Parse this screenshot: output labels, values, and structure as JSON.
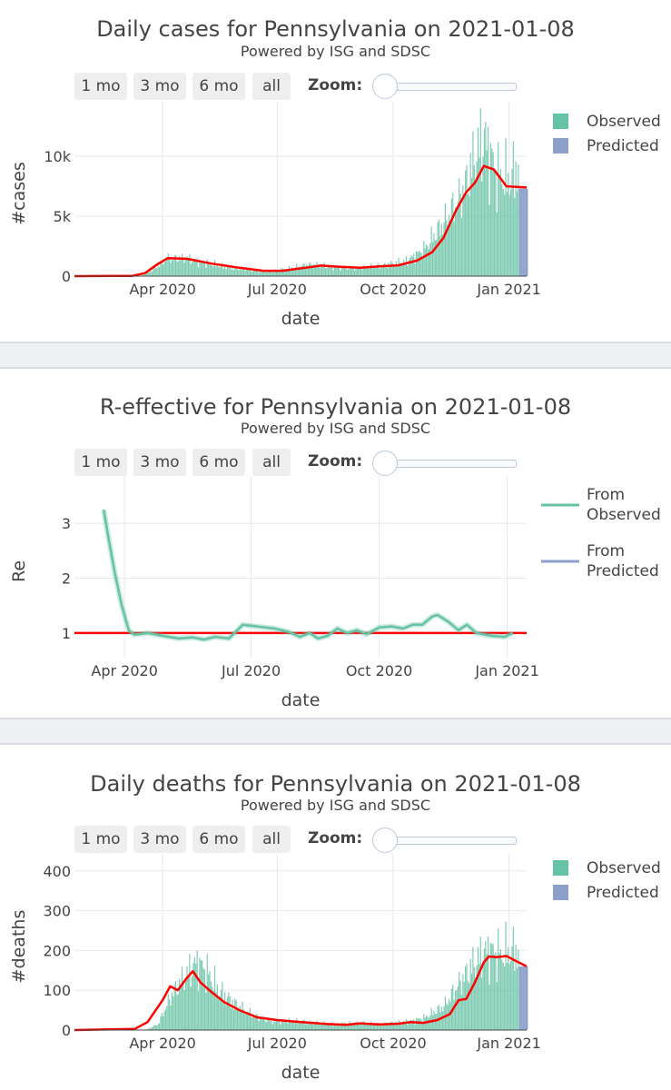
{
  "controls": {
    "buttons": [
      "1 mo",
      "3 mo",
      "6 mo",
      "all"
    ],
    "zoom_label": "Zoom:"
  },
  "colors": {
    "observed": "#66c2a5",
    "predicted": "#8da0cb",
    "trend": "#ff0000",
    "grid": "#e8e8e8"
  },
  "chart_data": [
    {
      "type": "bar",
      "title": "Daily cases for Pennsylvania on 2021-01-08",
      "subtitle": "Powered by ISG and SDSC",
      "xlabel": "date",
      "ylabel": "#cases",
      "x_range": [
        "2020-01-22",
        "2021-01-15"
      ],
      "ylim": [
        0,
        13800
      ],
      "x_ticks": [
        {
          "date": "2020-04-01",
          "label": "Apr 2020"
        },
        {
          "date": "2020-07-01",
          "label": "Jul 2020"
        },
        {
          "date": "2020-10-01",
          "label": "Oct 2020"
        },
        {
          "date": "2021-01-01",
          "label": "Jan 2021"
        }
      ],
      "y_ticks": [
        {
          "value": 0,
          "label": "0"
        },
        {
          "value": 5000,
          "label": "5k"
        },
        {
          "value": 10000,
          "label": "10k"
        }
      ],
      "legend": {
        "position": "top-right",
        "items": [
          "Observed",
          "Predicted"
        ]
      },
      "observed_start": "2020-03-06",
      "observed_end": "2021-01-08",
      "predicted_end": "2021-01-15",
      "series": [
        {
          "name": "Observed",
          "style": "bars",
          "profile": [
            [
              "2020-03-06",
              0
            ],
            [
              "2020-03-15",
              30
            ],
            [
              "2020-03-25",
              600
            ],
            [
              "2020-04-05",
              1500
            ],
            [
              "2020-04-20",
              1450
            ],
            [
              "2020-05-05",
              1100
            ],
            [
              "2020-05-25",
              700
            ],
            [
              "2020-06-20",
              400
            ],
            [
              "2020-07-10",
              620
            ],
            [
              "2020-07-25",
              950
            ],
            [
              "2020-08-10",
              800
            ],
            [
              "2020-09-01",
              650
            ],
            [
              "2020-09-20",
              850
            ],
            [
              "2020-10-10",
              1200
            ],
            [
              "2020-10-25",
              2200
            ],
            [
              "2020-11-10",
              4500
            ],
            [
              "2020-11-25",
              7000
            ],
            [
              "2020-12-05",
              10000
            ],
            [
              "2020-12-12",
              11500
            ],
            [
              "2020-12-22",
              8500
            ],
            [
              "2021-01-01",
              8000
            ],
            [
              "2021-01-08",
              9200
            ]
          ]
        },
        {
          "name": "Predicted",
          "style": "bars",
          "value": 7300
        },
        {
          "name": "trend",
          "style": "line",
          "points": [
            [
              "2020-01-22",
              0
            ],
            [
              "2020-03-08",
              20
            ],
            [
              "2020-03-18",
              250
            ],
            [
              "2020-03-28",
              1000
            ],
            [
              "2020-04-05",
              1500
            ],
            [
              "2020-04-20",
              1450
            ],
            [
              "2020-05-10",
              1050
            ],
            [
              "2020-06-01",
              700
            ],
            [
              "2020-06-20",
              450
            ],
            [
              "2020-07-05",
              450
            ],
            [
              "2020-07-20",
              650
            ],
            [
              "2020-08-05",
              880
            ],
            [
              "2020-08-20",
              780
            ],
            [
              "2020-09-05",
              700
            ],
            [
              "2020-09-20",
              820
            ],
            [
              "2020-10-05",
              900
            ],
            [
              "2020-10-20",
              1300
            ],
            [
              "2020-11-01",
              2000
            ],
            [
              "2020-11-10",
              3200
            ],
            [
              "2020-11-20",
              5500
            ],
            [
              "2020-11-28",
              7000
            ],
            [
              "2020-12-05",
              7800
            ],
            [
              "2020-12-12",
              9200
            ],
            [
              "2020-12-20",
              8900
            ],
            [
              "2020-12-30",
              7500
            ],
            [
              "2021-01-15",
              7400
            ]
          ]
        }
      ]
    },
    {
      "type": "line",
      "title": "R-effective for Pennsylvania on 2021-01-08",
      "subtitle": "Powered by ISG and SDSC",
      "xlabel": "date",
      "ylabel": "Re",
      "x_range": [
        "2020-02-25",
        "2021-01-15"
      ],
      "ylim": [
        0.55,
        3.7
      ],
      "x_ticks": [
        {
          "date": "2020-04-01",
          "label": "Apr 2020"
        },
        {
          "date": "2020-07-01",
          "label": "Jul 2020"
        },
        {
          "date": "2020-10-01",
          "label": "Oct 2020"
        },
        {
          "date": "2021-01-01",
          "label": "Jan 2021"
        }
      ],
      "y_ticks": [
        {
          "value": 1,
          "label": "1"
        },
        {
          "value": 2,
          "label": "2"
        },
        {
          "value": 3,
          "label": "3"
        }
      ],
      "legend": {
        "position": "top-right",
        "items": [
          "From Observed",
          "From Predicted"
        ]
      },
      "reference_line": 1,
      "series": [
        {
          "name": "From Observed",
          "points": [
            [
              "2020-03-17",
              3.25
            ],
            [
              "2020-03-20",
              2.8
            ],
            [
              "2020-03-25",
              2.1
            ],
            [
              "2020-03-30",
              1.5
            ],
            [
              "2020-04-04",
              1.05
            ],
            [
              "2020-04-08",
              0.97
            ],
            [
              "2020-04-18",
              1.0
            ],
            [
              "2020-04-28",
              0.95
            ],
            [
              "2020-05-10",
              0.9
            ],
            [
              "2020-05-20",
              0.92
            ],
            [
              "2020-05-28",
              0.88
            ],
            [
              "2020-06-05",
              0.93
            ],
            [
              "2020-06-15",
              0.9
            ],
            [
              "2020-06-25",
              1.15
            ],
            [
              "2020-07-05",
              1.12
            ],
            [
              "2020-07-18",
              1.08
            ],
            [
              "2020-07-28",
              1.02
            ],
            [
              "2020-08-05",
              0.93
            ],
            [
              "2020-08-12",
              1.0
            ],
            [
              "2020-08-18",
              0.9
            ],
            [
              "2020-08-25",
              0.95
            ],
            [
              "2020-09-01",
              1.08
            ],
            [
              "2020-09-08",
              1.0
            ],
            [
              "2020-09-15",
              1.05
            ],
            [
              "2020-09-22",
              0.98
            ],
            [
              "2020-10-01",
              1.1
            ],
            [
              "2020-10-10",
              1.12
            ],
            [
              "2020-10-18",
              1.08
            ],
            [
              "2020-10-25",
              1.15
            ],
            [
              "2020-11-01",
              1.15
            ],
            [
              "2020-11-08",
              1.3
            ],
            [
              "2020-11-12",
              1.33
            ],
            [
              "2020-11-20",
              1.2
            ],
            [
              "2020-11-27",
              1.05
            ],
            [
              "2020-12-03",
              1.15
            ],
            [
              "2020-12-10",
              1.0
            ],
            [
              "2020-12-20",
              0.95
            ],
            [
              "2020-12-30",
              0.93
            ],
            [
              "2021-01-05",
              1.0
            ]
          ]
        }
      ]
    },
    {
      "type": "bar",
      "title": "Daily deaths for Pennsylvania on 2021-01-08",
      "subtitle": "Powered by ISG and SDSC",
      "xlabel": "date",
      "ylabel": "#deaths",
      "x_range": [
        "2020-01-22",
        "2021-01-15"
      ],
      "ylim": [
        0,
        420
      ],
      "x_ticks": [
        {
          "date": "2020-04-01",
          "label": "Apr 2020"
        },
        {
          "date": "2020-07-01",
          "label": "Jul 2020"
        },
        {
          "date": "2020-10-01",
          "label": "Oct 2020"
        },
        {
          "date": "2021-01-01",
          "label": "Jan 2021"
        }
      ],
      "y_ticks": [
        {
          "value": 0,
          "label": "0"
        },
        {
          "value": 100,
          "label": "100"
        },
        {
          "value": 200,
          "label": "200"
        },
        {
          "value": 300,
          "label": "300"
        },
        {
          "value": 400,
          "label": "400"
        }
      ],
      "legend": {
        "position": "top-right",
        "items": [
          "Observed",
          "Predicted"
        ]
      },
      "observed_start": "2020-03-18",
      "observed_end": "2021-01-08",
      "predicted_end": "2021-01-15",
      "series": [
        {
          "name": "Observed",
          "style": "bars",
          "profile": [
            [
              "2020-03-18",
              0
            ],
            [
              "2020-03-28",
              15
            ],
            [
              "2020-04-08",
              90
            ],
            [
              "2020-04-20",
              140
            ],
            [
              "2020-04-28",
              170
            ],
            [
              "2020-05-05",
              150
            ],
            [
              "2020-05-15",
              100
            ],
            [
              "2020-05-28",
              65
            ],
            [
              "2020-06-10",
              40
            ],
            [
              "2020-06-25",
              22
            ],
            [
              "2020-07-20",
              22
            ],
            [
              "2020-08-10",
              15
            ],
            [
              "2020-09-01",
              18
            ],
            [
              "2020-09-20",
              15
            ],
            [
              "2020-10-10",
              20
            ],
            [
              "2020-10-25",
              30
            ],
            [
              "2020-11-10",
              60
            ],
            [
              "2020-11-25",
              130
            ],
            [
              "2020-12-05",
              170
            ],
            [
              "2020-12-15",
              200
            ],
            [
              "2020-12-25",
              190
            ],
            [
              "2021-01-08",
              200
            ]
          ]
        },
        {
          "name": "Predicted",
          "style": "bars",
          "value": 160
        },
        {
          "name": "trend",
          "style": "line",
          "points": [
            [
              "2020-01-22",
              0
            ],
            [
              "2020-03-10",
              3
            ],
            [
              "2020-03-20",
              20
            ],
            [
              "2020-04-01",
              75
            ],
            [
              "2020-04-07",
              110
            ],
            [
              "2020-04-13",
              100
            ],
            [
              "2020-04-20",
              130
            ],
            [
              "2020-04-25",
              148
            ],
            [
              "2020-05-01",
              120
            ],
            [
              "2020-05-10",
              95
            ],
            [
              "2020-05-20",
              70
            ],
            [
              "2020-06-01",
              50
            ],
            [
              "2020-06-15",
              32
            ],
            [
              "2020-07-01",
              25
            ],
            [
              "2020-07-20",
              20
            ],
            [
              "2020-08-10",
              15
            ],
            [
              "2020-08-25",
              13
            ],
            [
              "2020-09-05",
              17
            ],
            [
              "2020-09-20",
              14
            ],
            [
              "2020-10-05",
              16
            ],
            [
              "2020-10-15",
              20
            ],
            [
              "2020-10-25",
              18
            ],
            [
              "2020-11-05",
              25
            ],
            [
              "2020-11-15",
              40
            ],
            [
              "2020-11-22",
              75
            ],
            [
              "2020-11-28",
              78
            ],
            [
              "2020-12-05",
              120
            ],
            [
              "2020-12-12",
              170
            ],
            [
              "2020-12-16",
              185
            ],
            [
              "2020-12-22",
              183
            ],
            [
              "2020-12-30",
              186
            ],
            [
              "2021-01-05",
              176
            ],
            [
              "2021-01-15",
              160
            ]
          ]
        }
      ]
    }
  ]
}
